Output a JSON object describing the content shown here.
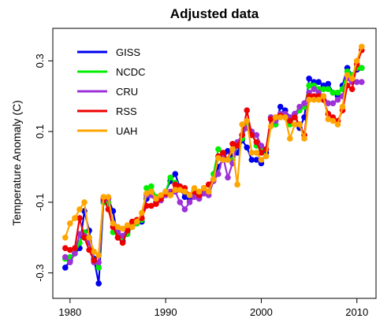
{
  "chart_data": {
    "type": "line",
    "title": "Adjusted data",
    "xlabel": "",
    "ylabel": "Temperature Anomaly (C)",
    "xlim": [
      1978.2,
      2012.0
    ],
    "ylim": [
      -0.372,
      0.392
    ],
    "xticks": [
      1980,
      1990,
      2000,
      2010
    ],
    "yticks": [
      -0.3,
      -0.1,
      0.1,
      0.3
    ],
    "grid": false,
    "legend": "top-left",
    "x": [
      1979.5,
      1980.0,
      1980.5,
      1981.0,
      1981.5,
      1982.0,
      1982.5,
      1983.0,
      1983.5,
      1984.0,
      1984.5,
      1985.0,
      1985.5,
      1986.0,
      1986.5,
      1987.0,
      1987.5,
      1988.0,
      1988.5,
      1989.0,
      1989.5,
      1990.0,
      1990.5,
      1991.0,
      1991.5,
      1992.0,
      1992.5,
      1993.0,
      1993.5,
      1994.0,
      1994.5,
      1995.0,
      1995.5,
      1996.0,
      1996.5,
      1997.0,
      1997.5,
      1998.0,
      1998.5,
      1999.0,
      1999.5,
      2000.0,
      2000.5,
      2001.0,
      2001.5,
      2002.0,
      2002.5,
      2003.0,
      2003.5,
      2004.0,
      2004.5,
      2005.0,
      2005.5,
      2006.0,
      2006.5,
      2007.0,
      2007.5,
      2008.0,
      2008.5,
      2009.0,
      2009.5,
      2010.0,
      2010.5
    ],
    "series": [
      {
        "name": "GISS",
        "color": "#0000ee",
        "values": [
          -0.285,
          -0.265,
          -0.245,
          -0.23,
          -0.125,
          -0.18,
          -0.26,
          -0.33,
          -0.1,
          -0.09,
          -0.125,
          -0.2,
          -0.21,
          -0.185,
          -0.17,
          -0.16,
          -0.155,
          -0.09,
          -0.07,
          -0.1,
          -0.085,
          -0.07,
          -0.04,
          -0.02,
          -0.06,
          -0.085,
          -0.09,
          -0.07,
          -0.085,
          -0.07,
          -0.07,
          -0.035,
          0.0,
          0.02,
          0.045,
          0.03,
          0.04,
          0.075,
          0.055,
          0.02,
          0.02,
          0.01,
          0.04,
          0.14,
          0.12,
          0.17,
          0.16,
          0.14,
          0.15,
          0.11,
          0.14,
          0.25,
          0.24,
          0.24,
          0.23,
          0.235,
          0.21,
          0.2,
          0.23,
          0.28,
          0.26,
          0.275,
          0.28
        ]
      },
      {
        "name": "NCDC",
        "color": "#00ee00",
        "values": [
          -0.26,
          -0.255,
          -0.245,
          -0.215,
          -0.185,
          -0.2,
          -0.265,
          -0.285,
          -0.1,
          -0.1,
          -0.185,
          -0.19,
          -0.2,
          -0.19,
          -0.17,
          -0.16,
          -0.15,
          -0.06,
          -0.055,
          -0.085,
          -0.085,
          -0.07,
          -0.03,
          -0.045,
          -0.06,
          -0.07,
          -0.08,
          -0.065,
          -0.08,
          -0.075,
          -0.07,
          -0.02,
          0.05,
          0.035,
          0.02,
          0.02,
          0.06,
          0.08,
          0.12,
          0.1,
          0.06,
          0.05,
          0.03,
          0.14,
          0.12,
          0.15,
          0.14,
          0.12,
          0.14,
          0.16,
          0.17,
          0.23,
          0.23,
          0.22,
          0.22,
          0.22,
          0.21,
          0.21,
          0.22,
          0.27,
          0.26,
          0.28,
          0.28
        ]
      },
      {
        "name": "CRU",
        "color": "#9e30d8",
        "values": [
          -0.255,
          -0.27,
          -0.245,
          -0.19,
          -0.195,
          -0.215,
          -0.27,
          -0.27,
          -0.095,
          -0.09,
          -0.17,
          -0.185,
          -0.195,
          -0.175,
          -0.165,
          -0.155,
          -0.145,
          -0.08,
          -0.08,
          -0.1,
          -0.095,
          -0.08,
          -0.07,
          -0.07,
          -0.1,
          -0.12,
          -0.1,
          -0.085,
          -0.09,
          -0.075,
          -0.08,
          -0.04,
          -0.02,
          0.03,
          -0.03,
          0.01,
          0.07,
          0.09,
          0.11,
          0.1,
          0.09,
          0.06,
          0.05,
          0.14,
          0.13,
          0.15,
          0.15,
          0.14,
          0.15,
          0.17,
          0.18,
          0.21,
          0.22,
          0.21,
          0.2,
          0.18,
          0.18,
          0.19,
          0.2,
          0.25,
          0.24,
          0.24,
          0.24
        ]
      },
      {
        "name": "RSS",
        "color": "#ee0000",
        "values": [
          -0.23,
          -0.235,
          -0.23,
          -0.145,
          -0.2,
          -0.235,
          -0.265,
          -0.25,
          -0.09,
          -0.12,
          -0.17,
          -0.2,
          -0.215,
          -0.18,
          -0.155,
          -0.15,
          -0.145,
          -0.11,
          -0.11,
          -0.105,
          -0.09,
          -0.075,
          -0.08,
          -0.05,
          -0.055,
          -0.06,
          -0.08,
          -0.07,
          -0.08,
          -0.06,
          -0.05,
          -0.035,
          0.03,
          0.04,
          0.02,
          0.065,
          0.06,
          0.09,
          0.16,
          0.09,
          0.07,
          0.04,
          0.05,
          0.135,
          0.14,
          0.145,
          0.14,
          0.13,
          0.14,
          0.12,
          0.09,
          0.2,
          0.2,
          0.2,
          0.19,
          0.15,
          0.14,
          0.13,
          0.16,
          0.23,
          0.22,
          0.29,
          0.33
        ]
      },
      {
        "name": "UAH",
        "color": "#ffa500",
        "values": [
          -0.2,
          -0.16,
          -0.145,
          -0.12,
          -0.1,
          -0.2,
          -0.24,
          -0.25,
          -0.085,
          -0.085,
          -0.16,
          -0.17,
          -0.175,
          -0.165,
          -0.17,
          -0.155,
          -0.13,
          -0.075,
          -0.07,
          -0.09,
          -0.08,
          -0.07,
          -0.08,
          -0.065,
          -0.065,
          -0.07,
          -0.08,
          -0.06,
          -0.07,
          -0.06,
          -0.07,
          -0.035,
          0.025,
          0.02,
          0.02,
          0.05,
          -0.05,
          0.12,
          0.13,
          0.04,
          0.04,
          0.02,
          0.03,
          0.115,
          0.14,
          0.14,
          0.14,
          0.08,
          0.12,
          0.12,
          0.08,
          0.19,
          0.19,
          0.19,
          0.2,
          0.135,
          0.13,
          0.12,
          0.17,
          0.26,
          0.25,
          0.3,
          0.34
        ]
      }
    ]
  }
}
